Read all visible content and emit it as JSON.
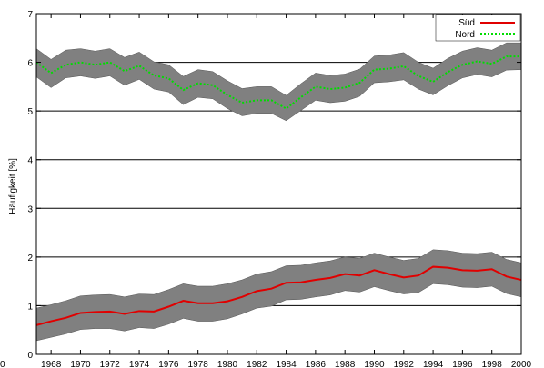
{
  "chart_data": {
    "type": "line",
    "ylabel": "Häufigkeit [%]",
    "xlim": [
      1967,
      2000
    ],
    "ylim": [
      0,
      7
    ],
    "corner_label": "0",
    "x_ticks": [
      1968,
      1970,
      1972,
      1974,
      1976,
      1978,
      1980,
      1982,
      1984,
      1986,
      1988,
      1990,
      1992,
      1994,
      1996,
      1998,
      2000
    ],
    "y_ticks": [
      0,
      1,
      2,
      3,
      4,
      5,
      6,
      7
    ],
    "grid": "horizontal",
    "legend_position": "top-right",
    "band_color": "#808080",
    "x": [
      1967,
      1968,
      1969,
      1970,
      1971,
      1972,
      1973,
      1974,
      1975,
      1976,
      1977,
      1978,
      1979,
      1980,
      1981,
      1982,
      1983,
      1984,
      1985,
      1986,
      1987,
      1988,
      1989,
      1990,
      1991,
      1992,
      1993,
      1994,
      1995,
      1996,
      1997,
      1998,
      1999,
      2000
    ],
    "series": [
      {
        "name": "Süd",
        "color": "#e00000",
        "line_style": "solid",
        "values": [
          0.6,
          0.68,
          0.75,
          0.85,
          0.87,
          0.88,
          0.83,
          0.89,
          0.88,
          0.98,
          1.1,
          1.05,
          1.05,
          1.09,
          1.18,
          1.3,
          1.35,
          1.47,
          1.48,
          1.53,
          1.57,
          1.65,
          1.62,
          1.73,
          1.65,
          1.58,
          1.62,
          1.8,
          1.78,
          1.73,
          1.72,
          1.75,
          1.6,
          1.53
        ],
        "band_lower": [
          0.28,
          0.35,
          0.42,
          0.51,
          0.53,
          0.53,
          0.48,
          0.55,
          0.53,
          0.62,
          0.74,
          0.68,
          0.68,
          0.73,
          0.83,
          0.95,
          0.99,
          1.12,
          1.13,
          1.18,
          1.22,
          1.31,
          1.28,
          1.39,
          1.31,
          1.24,
          1.27,
          1.45,
          1.43,
          1.38,
          1.37,
          1.4,
          1.25,
          1.18
        ],
        "band_upper": [
          0.95,
          1.02,
          1.1,
          1.2,
          1.22,
          1.23,
          1.18,
          1.24,
          1.23,
          1.33,
          1.45,
          1.4,
          1.4,
          1.45,
          1.53,
          1.65,
          1.7,
          1.82,
          1.83,
          1.88,
          1.92,
          2.0,
          1.97,
          2.08,
          2.0,
          1.93,
          1.97,
          2.15,
          2.13,
          2.08,
          2.07,
          2.1,
          1.95,
          1.88
        ]
      },
      {
        "name": "Nord",
        "color": "#00dd00",
        "line_style": "dotted",
        "values": [
          6.0,
          5.78,
          5.95,
          6.0,
          5.95,
          6.0,
          5.82,
          5.93,
          5.73,
          5.67,
          5.43,
          5.57,
          5.53,
          5.33,
          5.17,
          5.22,
          5.22,
          5.05,
          5.28,
          5.5,
          5.45,
          5.48,
          5.58,
          5.85,
          5.87,
          5.92,
          5.72,
          5.6,
          5.8,
          5.95,
          6.02,
          5.97,
          6.12,
          6.12
        ],
        "band_lower": [
          5.7,
          5.48,
          5.68,
          5.72,
          5.67,
          5.72,
          5.53,
          5.65,
          5.45,
          5.39,
          5.13,
          5.28,
          5.25,
          5.05,
          4.9,
          4.95,
          4.95,
          4.8,
          5.01,
          5.22,
          5.17,
          5.2,
          5.3,
          5.58,
          5.6,
          5.64,
          5.45,
          5.33,
          5.52,
          5.68,
          5.75,
          5.7,
          5.84,
          5.85
        ],
        "band_upper": [
          6.28,
          6.06,
          6.25,
          6.28,
          6.23,
          6.28,
          6.1,
          6.21,
          6.01,
          5.95,
          5.71,
          5.85,
          5.81,
          5.62,
          5.46,
          5.5,
          5.5,
          5.32,
          5.56,
          5.78,
          5.73,
          5.76,
          5.86,
          6.13,
          6.15,
          6.2,
          6.0,
          5.88,
          6.08,
          6.23,
          6.3,
          6.25,
          6.4,
          6.4
        ]
      }
    ]
  }
}
